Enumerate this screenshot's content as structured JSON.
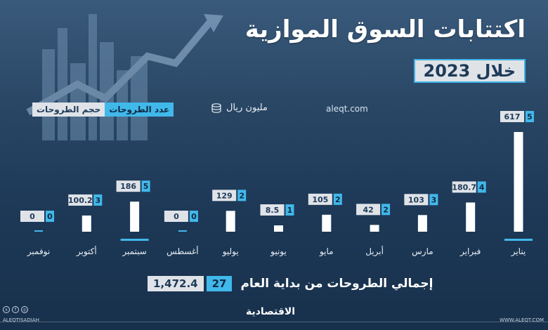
{
  "header": {
    "title": "اكتتابات السوق الموازية",
    "year": "خلال 2023"
  },
  "source": "aleqt.com",
  "unit": "مليون ريال",
  "legend": {
    "count": "عدد الطروحات",
    "volume": "حجم الطروحات"
  },
  "total": {
    "label": "إجمالي الطروحات من بداية العام",
    "count": "27",
    "volume": "1,472.4"
  },
  "footer": {
    "brand": "الاقتصادية",
    "handle": "ALEQTISADIAH",
    "url": "WWW.ALEQT.COM"
  },
  "colors": {
    "count_box": "#41b8ea",
    "volume_box": "#dfe3e8",
    "bar": "#ffffff",
    "zero_line": "#41b8ea"
  },
  "chart_data": {
    "type": "bar",
    "categories": [
      "يناير",
      "فبراير",
      "مارس",
      "أبريل",
      "مايو",
      "يونيو",
      "يوليو",
      "أغسطس",
      "سبتمبر",
      "أكتوبر",
      "نوفمبر"
    ],
    "series": [
      {
        "name": "حجم الطروحات",
        "values": [
          0,
          100.2,
          186,
          0,
          129,
          8.5,
          105,
          42,
          103,
          180.7,
          617
        ]
      },
      {
        "name": "عدد الطروحات",
        "values": [
          0,
          3,
          5,
          0,
          2,
          1,
          2,
          2,
          3,
          4,
          5
        ]
      }
    ],
    "value_labels": [
      "0",
      "100.2",
      "186",
      "0",
      "129",
      "8.5",
      "105",
      "42",
      "103",
      "180.7",
      "617"
    ],
    "count_labels": [
      "0",
      "3",
      "5",
      "0",
      "2",
      "1",
      "2",
      "2",
      "3",
      "4",
      "5"
    ],
    "highlighted_categories": [
      "مارس",
      "نوفمبر"
    ],
    "ylim": [
      0,
      617
    ],
    "grid": false
  }
}
